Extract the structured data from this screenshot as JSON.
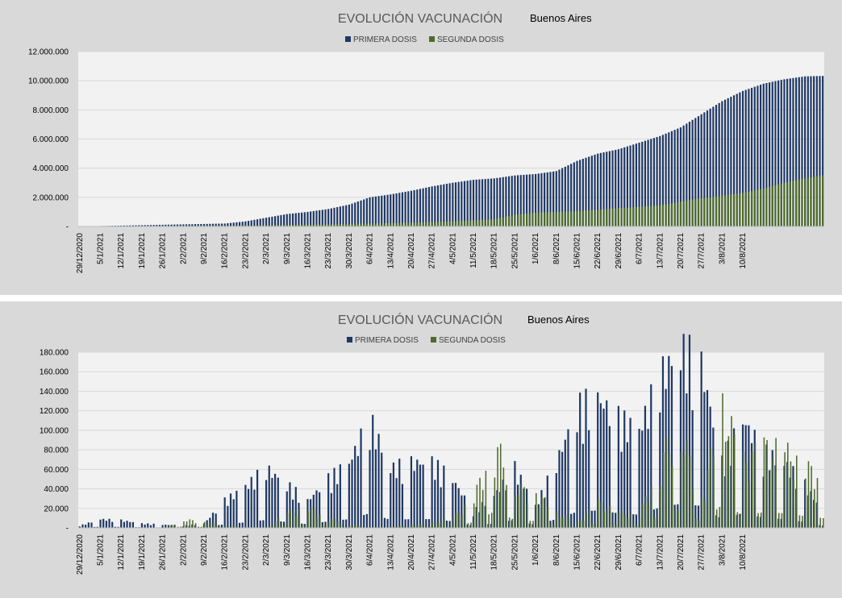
{
  "colors": {
    "primera": "#1f3864",
    "segunda": "#4e6b2d",
    "grid": "#d9d9d9",
    "plot_bg": "#f2f2f2",
    "panel_bg": "#d9d9d9"
  },
  "chart_data": [
    {
      "type": "bar",
      "title": "EVOLUCIÓN VACUNACIÓN",
      "subtitle": "Buenos Aires",
      "legend_position": "top",
      "grid": true,
      "ylim": [
        0,
        12000000
      ],
      "yticks": [
        "-",
        "2.000.000",
        "4.000.000",
        "6.000.000",
        "8.000.000",
        "10.000.000",
        "12.000.000"
      ],
      "ytick_values": [
        0,
        2000000,
        4000000,
        6000000,
        8000000,
        10000000,
        12000000
      ],
      "xtick_labels": [
        "29/12/2020",
        "5/1/2021",
        "12/1/2021",
        "19/1/2021",
        "26/1/2021",
        "2/2/2021",
        "9/2/2021",
        "16/2/2021",
        "23/2/2021",
        "2/3/2021",
        "9/3/2021",
        "16/3/2021",
        "23/3/2021",
        "30/3/2021",
        "6/4/2021",
        "13/4/2021",
        "20/4/2021",
        "27/4/2021",
        "4/5/2021",
        "11/5/2021",
        "18/5/2021",
        "25/5/2021",
        "1/6/2021",
        "8/6/2021",
        "15/6/2021",
        "22/6/2021",
        "29/6/2021",
        "6/7/2021",
        "13/7/2021",
        "20/7/2021",
        "27/7/2021",
        "3/8/2021",
        "10/8/2021"
      ],
      "series": [
        {
          "name": "PRIMERA DOSIS",
          "points": [
            [
              0,
              0
            ],
            [
              14,
              60000
            ],
            [
              49,
              200000
            ],
            [
              56,
              350000
            ],
            [
              63,
              600000
            ],
            [
              70,
              850000
            ],
            [
              77,
              1000000
            ],
            [
              84,
              1200000
            ],
            [
              91,
              1500000
            ],
            [
              98,
              2000000
            ],
            [
              105,
              2200000
            ],
            [
              112,
              2450000
            ],
            [
              119,
              2750000
            ],
            [
              126,
              3000000
            ],
            [
              133,
              3200000
            ],
            [
              140,
              3300000
            ],
            [
              147,
              3500000
            ],
            [
              154,
              3600000
            ],
            [
              161,
              3800000
            ],
            [
              168,
              4500000
            ],
            [
              175,
              5000000
            ],
            [
              182,
              5300000
            ],
            [
              189,
              5750000
            ],
            [
              196,
              6200000
            ],
            [
              203,
              6800000
            ],
            [
              210,
              7700000
            ],
            [
              217,
              8600000
            ],
            [
              224,
              9300000
            ],
            [
              231,
              9800000
            ],
            [
              238,
              10100000
            ],
            [
              245,
              10300000
            ],
            [
              251,
              10330000
            ]
          ]
        },
        {
          "name": "SEGUNDA DOSIS",
          "points": [
            [
              0,
              0
            ],
            [
              28,
              30000
            ],
            [
              56,
              60000
            ],
            [
              70,
              100000
            ],
            [
              84,
              150000
            ],
            [
              112,
              250000
            ],
            [
              126,
              350000
            ],
            [
              133,
              420000
            ],
            [
              140,
              500000
            ],
            [
              147,
              800000
            ],
            [
              154,
              950000
            ],
            [
              168,
              1050000
            ],
            [
              175,
              1150000
            ],
            [
              182,
              1250000
            ],
            [
              189,
              1350000
            ],
            [
              196,
              1450000
            ],
            [
              203,
              1700000
            ],
            [
              210,
              1950000
            ],
            [
              217,
              2100000
            ],
            [
              224,
              2300000
            ],
            [
              231,
              2600000
            ],
            [
              238,
              3000000
            ],
            [
              245,
              3300000
            ],
            [
              251,
              3500000
            ]
          ]
        }
      ]
    },
    {
      "type": "bar",
      "title": "EVOLUCIÓN VACUNACIÓN",
      "subtitle": "Buenos Aires",
      "legend_position": "top",
      "grid": true,
      "ylim": [
        0,
        180000
      ],
      "yticks": [
        "-",
        "20.000",
        "40.000",
        "60.000",
        "80.000",
        "100.000",
        "120.000",
        "140.000",
        "160.000",
        "180.000"
      ],
      "ytick_values": [
        0,
        20000,
        40000,
        60000,
        80000,
        100000,
        120000,
        140000,
        160000,
        180000
      ],
      "xtick_labels": [
        "29/12/2020",
        "5/1/2021",
        "12/1/2021",
        "19/1/2021",
        "26/1/2021",
        "2/2/2021",
        "9/2/2021",
        "16/2/2021",
        "23/2/2021",
        "2/3/2021",
        "9/3/2021",
        "16/3/2021",
        "23/3/2021",
        "30/3/2021",
        "6/4/2021",
        "13/4/2021",
        "20/4/2021",
        "27/4/2021",
        "4/5/2021",
        "11/5/2021",
        "18/5/2021",
        "25/5/2021",
        "1/6/2021",
        "8/6/2021",
        "15/6/2021",
        "22/6/2021",
        "29/6/2021",
        "6/7/2021",
        "13/7/2021",
        "20/7/2021",
        "27/7/2021",
        "3/8/2021",
        "10/8/2021"
      ],
      "series": [
        {
          "name": "PRIMERA DOSIS",
          "points": [
            [
              0,
              2000
            ],
            [
              7,
              8000
            ],
            [
              14,
              7000
            ],
            [
              21,
              4000
            ],
            [
              28,
              3000
            ],
            [
              35,
              2000
            ],
            [
              42,
              4000
            ],
            [
              49,
              25000
            ],
            [
              56,
              38000
            ],
            [
              63,
              55000
            ],
            [
              70,
              40000
            ],
            [
              77,
              25000
            ],
            [
              84,
              45000
            ],
            [
              91,
              60000
            ],
            [
              98,
              100000
            ],
            [
              105,
              55000
            ],
            [
              112,
              60000
            ],
            [
              119,
              60000
            ],
            [
              126,
              45000
            ],
            [
              133,
              15000
            ],
            [
              140,
              30000
            ],
            [
              147,
              55000
            ],
            [
              154,
              20000
            ],
            [
              161,
              60000
            ],
            [
              168,
              110000
            ],
            [
              175,
              120000
            ],
            [
              182,
              100000
            ],
            [
              189,
              90000
            ],
            [
              196,
              140000
            ],
            [
              203,
              165000
            ],
            [
              210,
              150000
            ],
            [
              217,
              60000
            ],
            [
              224,
              100000
            ],
            [
              231,
              70000
            ],
            [
              238,
              60000
            ],
            [
              245,
              40000
            ],
            [
              251,
              15000
            ]
          ]
        },
        {
          "name": "SEGUNDA DOSIS",
          "points": [
            [
              0,
              0
            ],
            [
              28,
              0
            ],
            [
              35,
              8000
            ],
            [
              42,
              6000
            ],
            [
              49,
              2000
            ],
            [
              56,
              1000
            ],
            [
              63,
              0
            ],
            [
              70,
              15000
            ],
            [
              77,
              20000
            ],
            [
              84,
              10000
            ],
            [
              91,
              3000
            ],
            [
              98,
              1000
            ],
            [
              105,
              1000
            ],
            [
              112,
              3000
            ],
            [
              119,
              5000
            ],
            [
              126,
              10000
            ],
            [
              133,
              30000
            ],
            [
              140,
              85000
            ],
            [
              147,
              40000
            ],
            [
              154,
              35000
            ],
            [
              161,
              15000
            ],
            [
              168,
              5000
            ],
            [
              175,
              25000
            ],
            [
              182,
              15000
            ],
            [
              189,
              12000
            ],
            [
              196,
              70000
            ],
            [
              203,
              95000
            ],
            [
              210,
              30000
            ],
            [
              217,
              120000
            ],
            [
              224,
              65000
            ],
            [
              231,
              80000
            ],
            [
              238,
              75000
            ],
            [
              245,
              60000
            ],
            [
              251,
              50000
            ]
          ]
        }
      ]
    }
  ]
}
